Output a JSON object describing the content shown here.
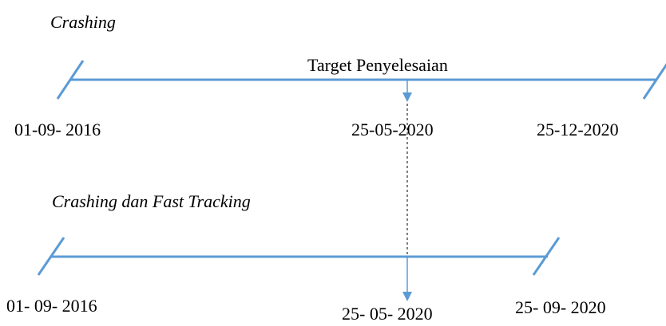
{
  "sections": [
    {
      "title": "Crashing",
      "target_label": "Target Penyelesaian",
      "dates": [
        "01-09- 2016",
        "25-05-2020",
        "25-12-2020"
      ]
    },
    {
      "title": "Crashing dan Fast Tracking",
      "dates": [
        "01- 09- 2016",
        "25- 05- 2020",
        "25- 09- 2020"
      ]
    }
  ]
}
